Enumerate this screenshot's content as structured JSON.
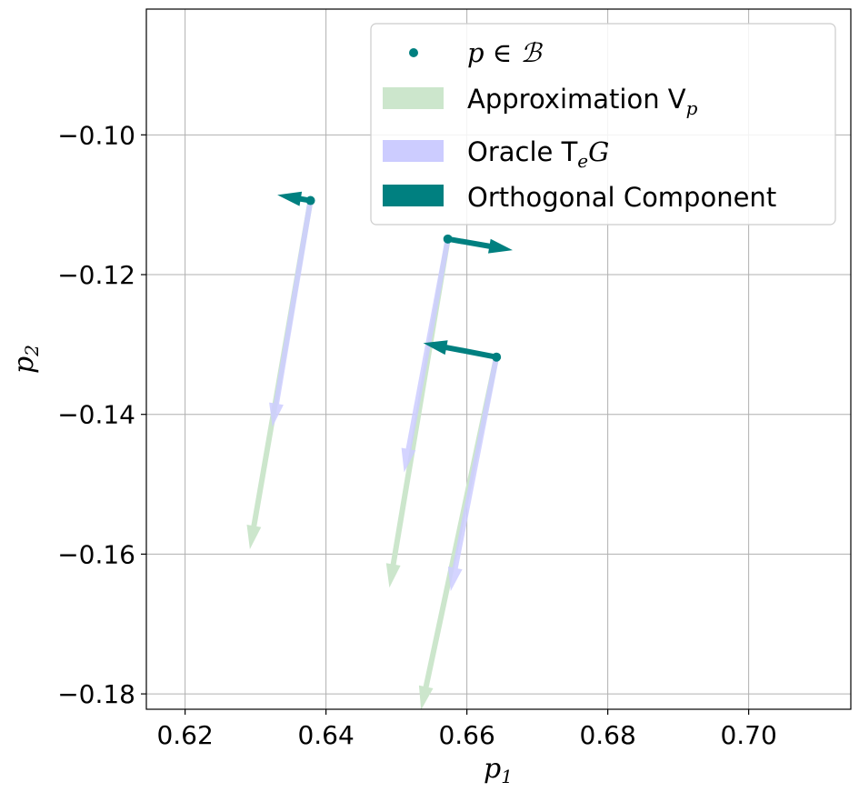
{
  "chart_data": {
    "type": "quiver",
    "xlabel": "p",
    "xlabel_sub": "1",
    "ylabel": "p",
    "ylabel_sub": "2",
    "xlim": [
      0.6145,
      0.7145
    ],
    "ylim": [
      -0.1822,
      -0.082
    ],
    "xticks": [
      0.62,
      0.64,
      0.66,
      0.68,
      0.7
    ],
    "xtick_labels": [
      "0.62",
      "0.64",
      "0.66",
      "0.68",
      "0.70"
    ],
    "yticks": [
      -0.1,
      -0.12,
      -0.14,
      -0.16,
      -0.18
    ],
    "ytick_labels": [
      "−0.10",
      "−0.12",
      "−0.14",
      "−0.16",
      "−0.18"
    ],
    "grid": true,
    "legend_position": "top-right",
    "colors": {
      "points": "#008080",
      "approximation": "#cce6cc",
      "oracle": "#ccccff",
      "orthogonal": "#008080",
      "grid": "#b0b0b0"
    },
    "legend": [
      {
        "key": "points",
        "kind": "marker",
        "text_main": "p ∈ ℬ",
        "text_sub": ""
      },
      {
        "key": "approximation",
        "kind": "patch",
        "text_main": "Approximation V",
        "text_sub": "p"
      },
      {
        "key": "oracle",
        "kind": "patch",
        "text_main": "Oracle T",
        "text_sub": "e",
        "text_after": "G"
      },
      {
        "key": "orthogonal",
        "kind": "patch",
        "text_main": "Orthogonal Component",
        "text_sub": ""
      }
    ],
    "points": [
      {
        "x": 0.6378,
        "y": -0.1094,
        "approximation": {
          "x2": 0.6292,
          "y2": -0.1593
        },
        "oracle": {
          "x2": 0.6324,
          "y2": -0.1418
        },
        "orthogonal": {
          "x2": 0.6331,
          "y2": -0.1086
        }
      },
      {
        "x": 0.6573,
        "y": -0.1149,
        "approximation": {
          "x2": 0.649,
          "y2": -0.1648
        },
        "oracle": {
          "x2": 0.6511,
          "y2": -0.1483
        },
        "orthogonal": {
          "x2": 0.6665,
          "y2": -0.1165
        }
      },
      {
        "x": 0.6642,
        "y": -0.1318,
        "approximation": {
          "x2": 0.6535,
          "y2": -0.1823
        },
        "oracle": {
          "x2": 0.6577,
          "y2": -0.1653
        },
        "orthogonal": {
          "x2": 0.6538,
          "y2": -0.1298
        }
      }
    ]
  }
}
